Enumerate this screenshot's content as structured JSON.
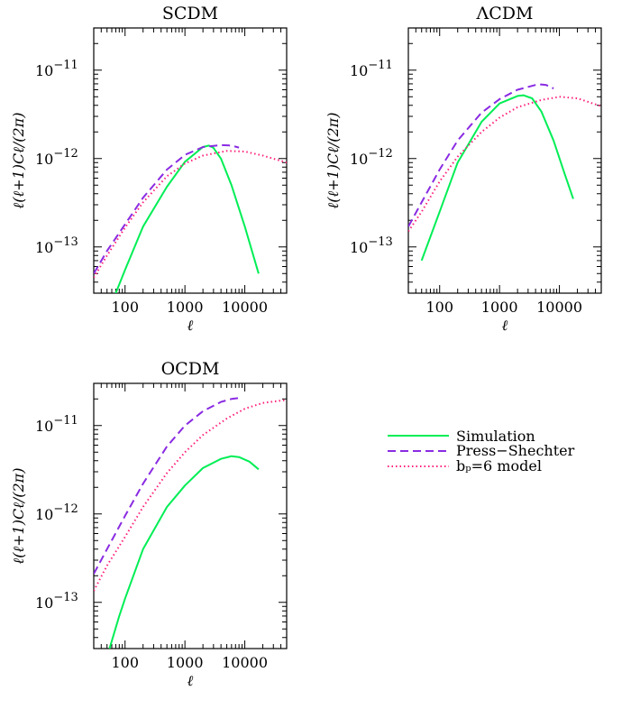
{
  "colors": {
    "simulation": "#00ee55",
    "press_shechter": "#8a2be2",
    "bp6": "#ff1f7a"
  },
  "legend": {
    "simulation": "Simulation",
    "press_shechter": "Press−Shechter",
    "bp6": "bₚ=6 model"
  },
  "chart_data": [
    {
      "type": "line",
      "title": "SCDM",
      "xlabel": "ℓ",
      "ylabel": "ℓ(ℓ+1)Cℓ/(2π)",
      "xscale": "log",
      "yscale": "log",
      "xlim": [
        30,
        50000
      ],
      "ylim": [
        3e-14,
        3e-11
      ],
      "xticks": [
        100,
        1000,
        10000
      ],
      "xticklabels": [
        "100",
        "1000",
        "10000"
      ],
      "yticks": [
        1e-13,
        1e-12,
        1e-11
      ],
      "ytick_exponents": [
        "−13",
        "−12",
        "−11"
      ],
      "series": [
        {
          "name": "Simulation",
          "style": "solid",
          "color": "#00ee55",
          "x": [
            70,
            100,
            200,
            500,
            1000,
            2000,
            2500,
            3000,
            4000,
            6000,
            10000,
            17000
          ],
          "y": [
            3e-14,
            5.5e-14,
            1.7e-13,
            4.8e-13,
            9.2e-13,
            1.35e-12,
            1.4e-12,
            1.32e-12,
            1e-12,
            5e-13,
            1.7e-13,
            5e-14
          ]
        },
        {
          "name": "Press−Shechter",
          "style": "dashed",
          "color": "#8a2be2",
          "x": [
            30,
            50,
            100,
            200,
            500,
            1000,
            2000,
            4000,
            6000,
            8000
          ],
          "y": [
            5e-14,
            9e-14,
            1.8e-13,
            3.6e-13,
            7.5e-13,
            1.1e-12,
            1.35e-12,
            1.42e-12,
            1.4e-12,
            1.33e-12
          ]
        },
        {
          "name": "bₚ=6 model",
          "style": "dotted",
          "color": "#ff1f7a",
          "x": [
            30,
            50,
            100,
            200,
            500,
            1000,
            2000,
            5000,
            10000,
            20000,
            50000
          ],
          "y": [
            4.5e-14,
            8e-14,
            1.65e-13,
            3.2e-13,
            6.3e-13,
            8.8e-13,
            1.08e-12,
            1.22e-12,
            1.2e-12,
            1.08e-12,
            9e-13
          ]
        }
      ]
    },
    {
      "type": "line",
      "title": "ΛCDM",
      "xlabel": "ℓ",
      "ylabel": "ℓ(ℓ+1)Cℓ/(2π)",
      "xscale": "log",
      "yscale": "log",
      "xlim": [
        30,
        50000
      ],
      "ylim": [
        3e-14,
        3e-11
      ],
      "xticks": [
        100,
        1000,
        10000
      ],
      "xticklabels": [
        "100",
        "1000",
        "10000"
      ],
      "yticks": [
        1e-13,
        1e-12,
        1e-11
      ],
      "ytick_exponents": [
        "−13",
        "−12",
        "−11"
      ],
      "series": [
        {
          "name": "Simulation",
          "style": "solid",
          "color": "#00ee55",
          "x": [
            50,
            100,
            200,
            500,
            1000,
            2000,
            2500,
            3500,
            5000,
            8000,
            12000,
            17000
          ],
          "y": [
            7e-14,
            2.5e-13,
            9e-13,
            2.6e-12,
            4.2e-12,
            5.1e-12,
            5.2e-12,
            4.8e-12,
            3.4e-12,
            1.6e-12,
            7e-13,
            3.5e-13
          ]
        },
        {
          "name": "Press−Shechter",
          "style": "dashed",
          "color": "#8a2be2",
          "x": [
            30,
            50,
            100,
            200,
            500,
            1000,
            2000,
            4000,
            5000,
            6000,
            8000
          ],
          "y": [
            1.7e-13,
            3.2e-13,
            7.5e-13,
            1.6e-12,
            3.3e-12,
            4.7e-12,
            6e-12,
            6.8e-12,
            6.9e-12,
            6.8e-12,
            6.2e-12
          ]
        },
        {
          "name": "bₚ=6 model",
          "style": "dotted",
          "color": "#ff1f7a",
          "x": [
            30,
            50,
            100,
            200,
            500,
            1000,
            2000,
            5000,
            10000,
            20000,
            50000
          ],
          "y": [
            1.5e-13,
            2.5e-13,
            5.5e-13,
            1.05e-12,
            2e-12,
            2.9e-12,
            3.8e-12,
            4.6e-12,
            5e-12,
            4.8e-12,
            3.9e-12
          ]
        }
      ]
    },
    {
      "type": "line",
      "title": "OCDM",
      "xlabel": "ℓ",
      "ylabel": "ℓ(ℓ+1)Cℓ/(2π)",
      "xscale": "log",
      "yscale": "log",
      "xlim": [
        30,
        50000
      ],
      "ylim": [
        3e-14,
        3e-11
      ],
      "xticks": [
        100,
        1000,
        10000
      ],
      "xticklabels": [
        "100",
        "1000",
        "10000"
      ],
      "yticks": [
        1e-13,
        1e-12,
        1e-11
      ],
      "ytick_exponents": [
        "−13",
        "−12",
        "−11"
      ],
      "series": [
        {
          "name": "Simulation",
          "style": "solid",
          "color": "#00ee55",
          "x": [
            55,
            80,
            100,
            200,
            500,
            1000,
            2000,
            4000,
            6000,
            8000,
            12000,
            17000
          ],
          "y": [
            3e-14,
            7e-14,
            1.1e-13,
            4e-13,
            1.2e-12,
            2.1e-12,
            3.3e-12,
            4.2e-12,
            4.5e-12,
            4.4e-12,
            3.9e-12,
            3.2e-12
          ]
        },
        {
          "name": "Press−Shechter",
          "style": "dashed",
          "color": "#8a2be2",
          "x": [
            30,
            50,
            100,
            200,
            500,
            1000,
            2000,
            4000,
            6000,
            8000
          ],
          "y": [
            2.1e-13,
            4e-13,
            9.5e-13,
            2.2e-12,
            5.8e-12,
            1e-11,
            1.45e-11,
            1.85e-11,
            2e-11,
            2.05e-11
          ]
        },
        {
          "name": "bₚ=6 model",
          "style": "dotted",
          "color": "#ff1f7a",
          "x": [
            30,
            50,
            100,
            200,
            500,
            1000,
            2000,
            5000,
            10000,
            20000,
            50000
          ],
          "y": [
            1.35e-13,
            2.6e-13,
            5.5e-13,
            1.2e-12,
            2.9e-12,
            5e-12,
            7.8e-12,
            1.2e-11,
            1.55e-11,
            1.8e-11,
            1.95e-11
          ]
        }
      ]
    }
  ]
}
